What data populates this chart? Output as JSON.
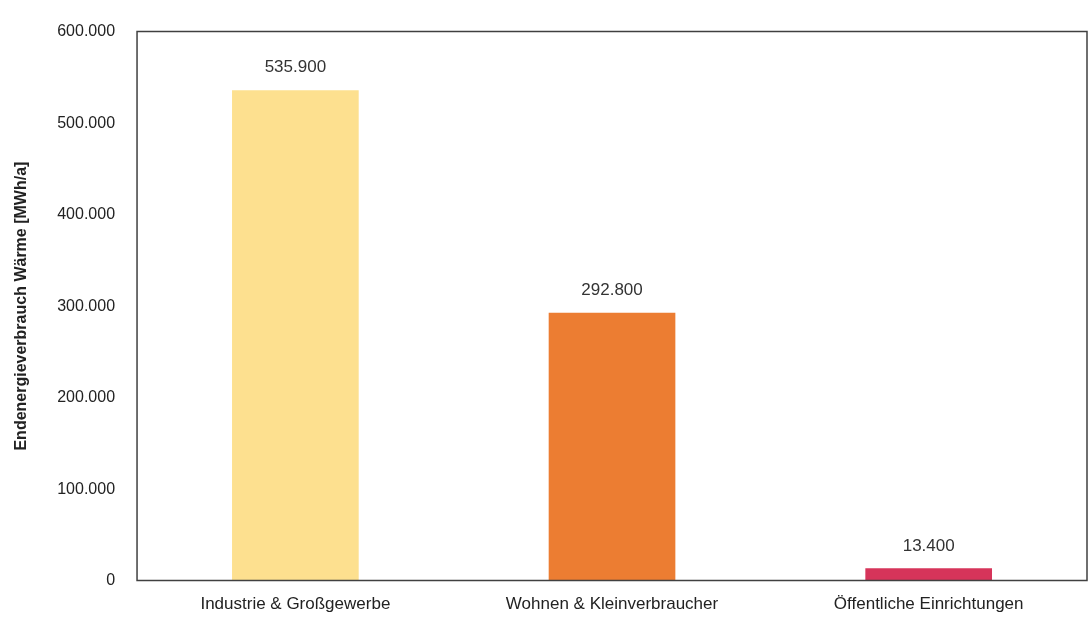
{
  "chart_data": {
    "type": "bar",
    "ylabel": "Endenergieverbrauch Wärme [MWh/a]",
    "categories": [
      "Industrie & Großgewerbe",
      "Wohnen & Kleinverbraucher",
      "Öffentliche Einrichtungen"
    ],
    "values": [
      535900,
      292800,
      13400
    ],
    "colors": [
      "#fde08f",
      "#ec7d32",
      "#d6345a"
    ],
    "value_labels": [
      "535.900",
      "292.800",
      "13.400"
    ],
    "ylim": [
      0,
      600000
    ],
    "yticks": [
      {
        "value": 0,
        "label": "0"
      },
      {
        "value": 100000,
        "label": "100.000"
      },
      {
        "value": 200000,
        "label": "200.000"
      },
      {
        "value": 300000,
        "label": "300.000"
      },
      {
        "value": 400000,
        "label": "400.000"
      },
      {
        "value": 500000,
        "label": "500.000"
      },
      {
        "value": 600000,
        "label": "600.000"
      }
    ],
    "grid": false,
    "legend": false
  }
}
